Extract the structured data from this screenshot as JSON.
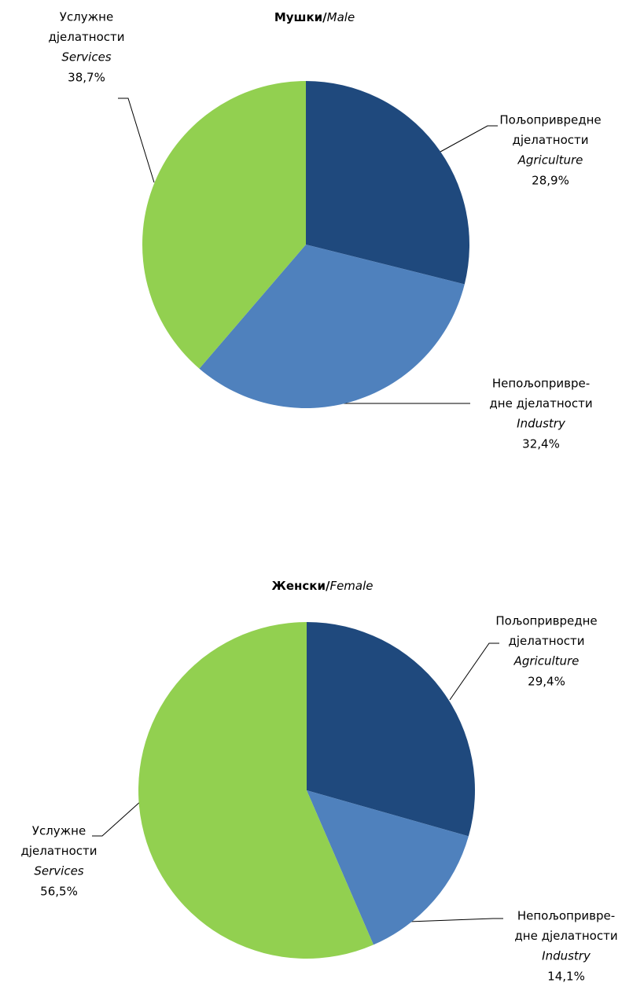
{
  "chart_data": [
    {
      "type": "pie",
      "title": "Мушки/",
      "title_en": "Male",
      "categories": [
        [
          "Пољопривредне",
          "дјелатности"
        ],
        [
          "Непољопривре-",
          "дне дјелатности"
        ],
        [
          "Услужне",
          "дјелатности"
        ]
      ],
      "categories_en": [
        "Agriculture",
        "Industry",
        "Services"
      ],
      "values": [
        28.9,
        32.4,
        38.7
      ],
      "value_labels": [
        "28,9%",
        "32,4%",
        "38,7%"
      ],
      "colors": [
        "#1f497d",
        "#4f81bd",
        "#92d050"
      ]
    },
    {
      "type": "pie",
      "title": "Женски/",
      "title_en": "Female",
      "categories": [
        [
          "Пољопривредне",
          "дјелатности"
        ],
        [
          "Непољопривре-",
          "дне дјелатности"
        ],
        [
          "Услужне",
          "дјелатности"
        ]
      ],
      "categories_en": [
        "Agriculture",
        "Industry",
        "Services"
      ],
      "values": [
        29.4,
        14.1,
        56.5
      ],
      "value_labels": [
        "29,4%",
        "14,1%",
        "56,5%"
      ],
      "colors": [
        "#1f497d",
        "#4f81bd",
        "#92d050"
      ]
    }
  ]
}
